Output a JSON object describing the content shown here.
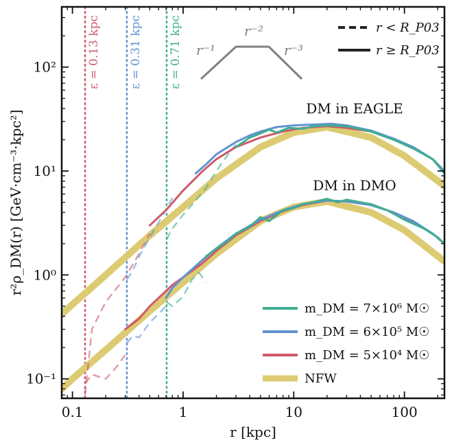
{
  "chart_data": {
    "type": "line",
    "xlabel": "r [kpc]",
    "ylabel": "r²ρ_DM(r) [GeV·cm⁻³·kpc²]",
    "xscale": "log",
    "yscale": "log",
    "xlim": [
      0.08,
      230
    ],
    "ylim": [
      0.065,
      380
    ],
    "grid": false,
    "x_ticks": [
      {
        "value": 0.1,
        "label": "0.1"
      },
      {
        "value": 1,
        "label": "1"
      },
      {
        "value": 10,
        "label": "10"
      },
      {
        "value": 100,
        "label": "100"
      }
    ],
    "y_ticks": [
      {
        "value": 0.1,
        "label": "10⁻¹"
      },
      {
        "value": 1,
        "label": "10⁰"
      },
      {
        "value": 10,
        "label": "10¹"
      },
      {
        "value": 100,
        "label": "10²"
      }
    ],
    "colors": {
      "green": "#3fae91",
      "blue": "#5f93d1",
      "red": "#cf5a6b",
      "nfw": "#dccb72",
      "gray": "#808080",
      "black": "#222222"
    },
    "softening": [
      {
        "x": 0.13,
        "label": "ε = 0.13 kpc",
        "color": "#cf5a6b"
      },
      {
        "x": 0.31,
        "label": "ε = 0.31 kpc",
        "color": "#5f93d1"
      },
      {
        "x": 0.71,
        "label": "ε = 0.71 kpc",
        "color": "#3fae91"
      }
    ],
    "slope_labels": [
      "r⁻¹",
      "r⁻²",
      "r⁻³"
    ],
    "annotations": [
      "DM in EAGLE",
      "DM in DMO"
    ],
    "style_legend": [
      "r < R_P03",
      "r ≥ R_P03"
    ],
    "series_legend": [
      {
        "name": "m_DM = 7×10⁶ M☉",
        "color": "#3fae91"
      },
      {
        "name": "m_DM = 6×10⁵ M☉",
        "color": "#5f93d1"
      },
      {
        "name": "m_DM = 5×10⁴ M☉",
        "color": "#cf5a6b"
      },
      {
        "name": "NFW",
        "color": "#dccb72"
      }
    ],
    "series": [
      {
        "group": "NFW",
        "color": "#dccb72",
        "width": 10,
        "style": "solid",
        "x": [
          0.08,
          0.1,
          0.2,
          0.5,
          1,
          2,
          5,
          10,
          20,
          50,
          100,
          230
        ],
        "y": [
          0.42,
          0.52,
          1.0,
          2.4,
          4.5,
          8.5,
          17,
          23.5,
          26.5,
          21,
          14,
          7.2
        ]
      },
      {
        "group": "NFW",
        "color": "#dccb72",
        "width": 10,
        "style": "solid",
        "x": [
          0.08,
          0.1,
          0.2,
          0.5,
          1,
          2,
          5,
          10,
          20,
          50,
          100,
          230
        ],
        "y": [
          0.08,
          0.1,
          0.19,
          0.45,
          0.85,
          1.6,
          3.3,
          4.5,
          5.1,
          4.0,
          2.7,
          1.35
        ]
      },
      {
        "group": "EAGLE",
        "color": "#cf5a6b",
        "width": 2.5,
        "style": "dash",
        "x": [
          0.13,
          0.15,
          0.2,
          0.3,
          0.4,
          0.5
        ],
        "y": [
          0.07,
          0.3,
          0.55,
          0.95,
          1.6,
          2.5
        ]
      },
      {
        "group": "EAGLE",
        "color": "#5f93d1",
        "width": 2.5,
        "style": "dash",
        "x": [
          0.31,
          0.35,
          0.4,
          0.5,
          0.6,
          0.8
        ],
        "y": [
          0.9,
          1.1,
          1.5,
          2.3,
          3.2,
          5.5
        ]
      },
      {
        "group": "EAGLE",
        "color": "#3fae91",
        "width": 2.5,
        "style": "dash",
        "x": [
          0.71,
          0.8,
          1.0,
          1.3,
          1.6,
          2.0,
          2.5,
          3.0
        ],
        "y": [
          2.2,
          2.8,
          3.8,
          5.2,
          6.8,
          10,
          14,
          18
        ]
      },
      {
        "group": "EAGLE",
        "color": "#cf5a6b",
        "width": 3,
        "style": "solid",
        "x": [
          0.5,
          0.7,
          1,
          1.5,
          2,
          3,
          5,
          8,
          12,
          20,
          30,
          50,
          80,
          120,
          180,
          230
        ],
        "y": [
          3.0,
          4.2,
          6.5,
          10,
          13,
          17,
          21,
          24,
          26,
          27,
          26,
          24,
          20,
          17,
          13,
          10
        ]
      },
      {
        "group": "EAGLE",
        "color": "#5f93d1",
        "width": 3,
        "style": "solid",
        "x": [
          1.3,
          1.6,
          2,
          3,
          4,
          5,
          7,
          10,
          15,
          22,
          30,
          50,
          80,
          120,
          180,
          230
        ],
        "y": [
          9.5,
          11.5,
          14.5,
          19,
          22,
          24,
          26.5,
          27.5,
          28,
          28.5,
          27.5,
          24.5,
          20.5,
          17,
          13,
          10
        ]
      },
      {
        "group": "EAGLE",
        "color": "#3fae91",
        "width": 3,
        "style": "solid",
        "x": [
          3,
          4,
          5,
          6,
          7,
          9,
          12,
          15,
          20,
          30,
          50,
          80,
          120,
          180,
          230
        ],
        "y": [
          17,
          21,
          23,
          25,
          23.5,
          26,
          25.5,
          27,
          27.5,
          27,
          24,
          20,
          16.5,
          13,
          9.5
        ]
      },
      {
        "group": "DMO",
        "color": "#cf5a6b",
        "width": 2.5,
        "style": "dash",
        "x": [
          0.13,
          0.15,
          0.2,
          0.25,
          0.3
        ],
        "y": [
          0.09,
          0.11,
          0.1,
          0.13,
          0.17
        ]
      },
      {
        "group": "DMO",
        "color": "#5f93d1",
        "width": 2.5,
        "style": "dash",
        "x": [
          0.31,
          0.35,
          0.4,
          0.5,
          0.6,
          0.7
        ],
        "y": [
          0.22,
          0.26,
          0.25,
          0.35,
          0.42,
          0.5
        ]
      },
      {
        "group": "DMO",
        "color": "#3fae91",
        "width": 2.5,
        "style": "dash",
        "x": [
          0.71,
          0.8,
          1.0,
          1.2,
          1.4,
          1.6
        ],
        "y": [
          0.55,
          0.5,
          0.62,
          0.9,
          1.05,
          0.85
        ]
      },
      {
        "group": "DMO",
        "color": "#cf5a6b",
        "width": 3,
        "style": "solid",
        "x": [
          0.3,
          0.4,
          0.5,
          0.6,
          0.8,
          1,
          1.5,
          2,
          3,
          5,
          8,
          12,
          20,
          30,
          50,
          80,
          120,
          180,
          230
        ],
        "y": [
          0.3,
          0.38,
          0.5,
          0.6,
          0.8,
          0.95,
          1.3,
          1.7,
          2.4,
          3.3,
          4.1,
          4.7,
          5.2,
          5.1,
          4.7,
          4.0,
          3.2,
          2.5,
          2.0
        ]
      },
      {
        "group": "DMO",
        "color": "#5f93d1",
        "width": 3,
        "style": "solid",
        "x": [
          0.7,
          0.8,
          1,
          1.5,
          2,
          3,
          5,
          8,
          12,
          20,
          30,
          50,
          80,
          120,
          180,
          230
        ],
        "y": [
          0.6,
          0.75,
          0.95,
          1.4,
          1.8,
          2.5,
          3.4,
          4.2,
          4.8,
          5.2,
          5.1,
          4.7,
          4.0,
          3.3,
          2.5,
          2.0
        ]
      },
      {
        "group": "DMO",
        "color": "#3fae91",
        "width": 3,
        "style": "solid",
        "x": [
          1.6,
          2,
          2.5,
          3,
          4,
          5,
          6,
          8,
          10,
          12,
          15,
          20,
          25,
          30,
          40,
          50,
          70,
          100,
          150,
          200,
          230
        ],
        "y": [
          1.5,
          1.8,
          2.1,
          2.5,
          2.9,
          3.6,
          3.3,
          4.2,
          4.4,
          4.8,
          5.0,
          5.4,
          5.0,
          5.3,
          5.0,
          4.8,
          4.2,
          3.4,
          2.8,
          2.3,
          2.0
        ]
      }
    ]
  }
}
